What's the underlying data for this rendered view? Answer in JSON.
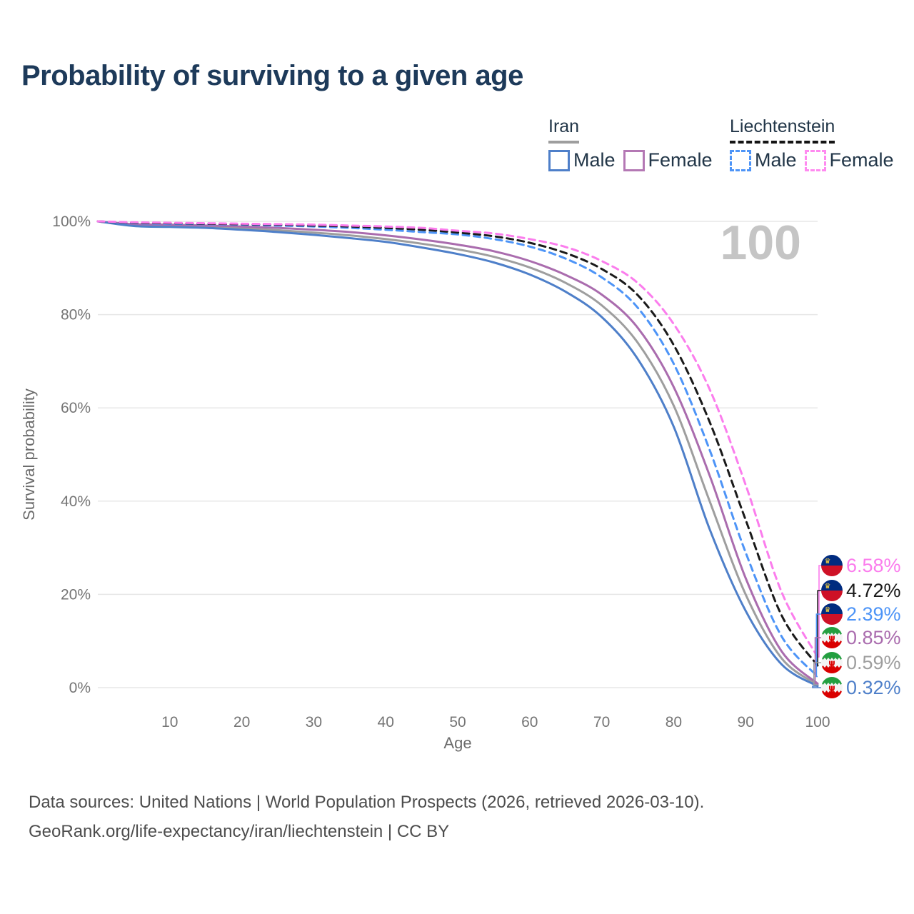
{
  "header": {
    "title": "Probability of surviving to a given age"
  },
  "legend": {
    "groups": [
      {
        "name": "Iran",
        "line_style": "solid",
        "underline_color": "#9e9e9e",
        "items": [
          {
            "label": "Male",
            "color": "#4e7fc9"
          },
          {
            "label": "Female",
            "color": "#b478b4"
          }
        ]
      },
      {
        "name": "Liechtenstein",
        "line_style": "dashed",
        "underline_color": "#141414",
        "items": [
          {
            "label": "Male",
            "color": "#4d94f7"
          },
          {
            "label": "Female",
            "color": "#ff8af0"
          }
        ]
      }
    ]
  },
  "chart_data": {
    "type": "line",
    "title": "Probability of surviving to a given age",
    "xlabel": "Age",
    "ylabel": "Survival probability",
    "xlim": [
      0,
      100
    ],
    "ylim": [
      0,
      100
    ],
    "grid": "horizontal",
    "legend_position": "top-right",
    "watermark": "100",
    "x_ticks": [
      10,
      20,
      30,
      40,
      50,
      60,
      70,
      80,
      90,
      100
    ],
    "y_ticks": [
      {
        "label": "100%",
        "value": 100
      },
      {
        "label": "80%",
        "value": 80
      },
      {
        "label": "60%",
        "value": 60
      },
      {
        "label": "40%",
        "value": 40
      },
      {
        "label": "20%",
        "value": 20
      },
      {
        "label": "0%",
        "value": 0
      }
    ],
    "x": [
      0,
      5,
      10,
      15,
      20,
      25,
      30,
      35,
      40,
      45,
      50,
      55,
      60,
      65,
      70,
      75,
      80,
      85,
      90,
      95,
      100
    ],
    "series": [
      {
        "id": "iran-total",
        "name": "Iran",
        "country": "Iran",
        "sex": "Both",
        "color": "#9e9e9e",
        "dash": false,
        "flag": "iran",
        "end_label": "0.59%",
        "values": [
          100,
          99.2,
          99.0,
          98.8,
          98.5,
          98.1,
          97.6,
          97.0,
          96.2,
          95.2,
          94.0,
          92.4,
          90.1,
          86.8,
          82.0,
          74.0,
          60.5,
          40.0,
          20.0,
          6.3,
          0.59
        ]
      },
      {
        "id": "iran-female",
        "name": "Iran Female",
        "country": "Iran",
        "sex": "Female",
        "color": "#aa6cae",
        "dash": false,
        "flag": "iran",
        "end_label": "0.85%",
        "values": [
          100,
          99.4,
          99.3,
          99.1,
          98.9,
          98.6,
          98.2,
          97.7,
          97.0,
          96.1,
          95.0,
          93.6,
          91.5,
          88.5,
          84.3,
          77.2,
          64.5,
          45.5,
          23.5,
          7.8,
          0.85
        ]
      },
      {
        "id": "iran-male",
        "name": "Iran Male",
        "country": "Iran",
        "sex": "Male",
        "color": "#4e7fc9",
        "dash": false,
        "flag": "iran",
        "end_label": "0.32%",
        "values": [
          100,
          99.0,
          98.8,
          98.6,
          98.2,
          97.7,
          97.1,
          96.4,
          95.6,
          94.4,
          93.0,
          91.2,
          88.6,
          84.9,
          79.5,
          70.5,
          56.0,
          34.0,
          16.5,
          5.0,
          0.32
        ]
      },
      {
        "id": "liechtenstein-male",
        "name": "Liechtenstein Male",
        "country": "Liechtenstein",
        "sex": "Male",
        "color": "#4d94f7",
        "dash": true,
        "flag": "liechtenstein",
        "end_label": "2.39%",
        "values": [
          100,
          99.6,
          99.5,
          99.4,
          99.3,
          99.1,
          98.9,
          98.6,
          98.2,
          97.7,
          97.2,
          96.2,
          94.6,
          92.0,
          88.0,
          81.5,
          69.5,
          51.0,
          29.0,
          11.0,
          2.39
        ]
      },
      {
        "id": "liechtenstein-total",
        "name": "Liechtenstein",
        "country": "Liechtenstein",
        "sex": "Both",
        "color": "#1a1a1a",
        "dash": true,
        "flag": "liechtenstein",
        "end_label": "4.72%",
        "values": [
          100,
          99.7,
          99.6,
          99.5,
          99.4,
          99.3,
          99.1,
          98.9,
          98.6,
          98.2,
          97.6,
          96.8,
          95.4,
          93.2,
          89.8,
          84.2,
          73.5,
          57.0,
          36.0,
          15.5,
          4.72
        ]
      },
      {
        "id": "liechtenstein-female",
        "name": "Liechtenstein Female",
        "country": "Liechtenstein",
        "sex": "Female",
        "color": "#fb7ded",
        "dash": true,
        "flag": "liechtenstein",
        "end_label": "6.58%",
        "values": [
          100,
          99.8,
          99.7,
          99.6,
          99.5,
          99.4,
          99.3,
          99.1,
          98.9,
          98.6,
          98.0,
          97.4,
          96.2,
          94.5,
          91.5,
          86.8,
          78.0,
          64.0,
          43.5,
          20.5,
          6.58
        ]
      }
    ],
    "end_labels": [
      {
        "text": "6.58%",
        "series": "liechtenstein-female"
      },
      {
        "text": "4.72%",
        "series": "liechtenstein-total"
      },
      {
        "text": "2.39%",
        "series": "liechtenstein-male"
      },
      {
        "text": "0.85%",
        "series": "iran-female"
      },
      {
        "text": "0.59%",
        "series": "iran-total"
      },
      {
        "text": "0.32%",
        "series": "iran-male"
      }
    ]
  },
  "footer": {
    "line1": "Data sources: United Nations | World Population Prospects (2026, retrieved 2026-03-10).",
    "line2": "GeoRank.org/life-expectancy/iran/liechtenstein | CC BY"
  }
}
